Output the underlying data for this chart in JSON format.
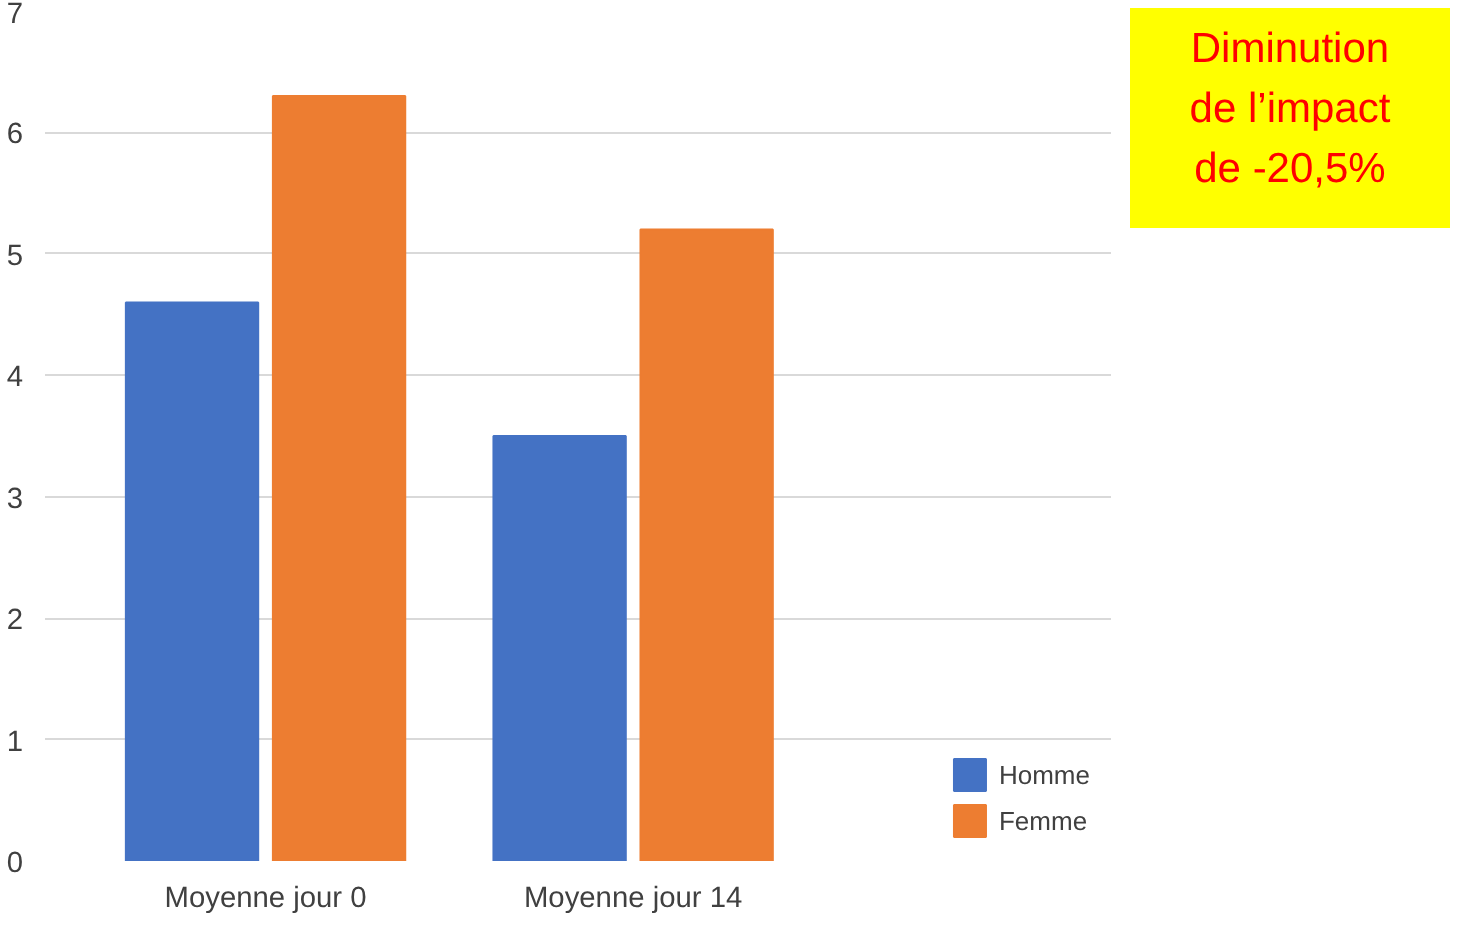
{
  "chart_data": {
    "type": "bar",
    "categories": [
      "Moyenne jour 0",
      "Moyenne jour 14"
    ],
    "series": [
      {
        "name": "Homme",
        "color": "#4472c4",
        "values": [
          4.6,
          3.5
        ]
      },
      {
        "name": "Femme",
        "color": "#ed7d31",
        "values": [
          6.3,
          5.2
        ]
      }
    ],
    "ylim": [
      0,
      7
    ],
    "yticks": [
      0,
      1,
      2,
      3,
      4,
      5,
      6,
      7
    ],
    "grid": "y",
    "legend": "bottom right",
    "annotations": [
      "Diminution\nde l’impact\nde -20,5%"
    ]
  }
}
